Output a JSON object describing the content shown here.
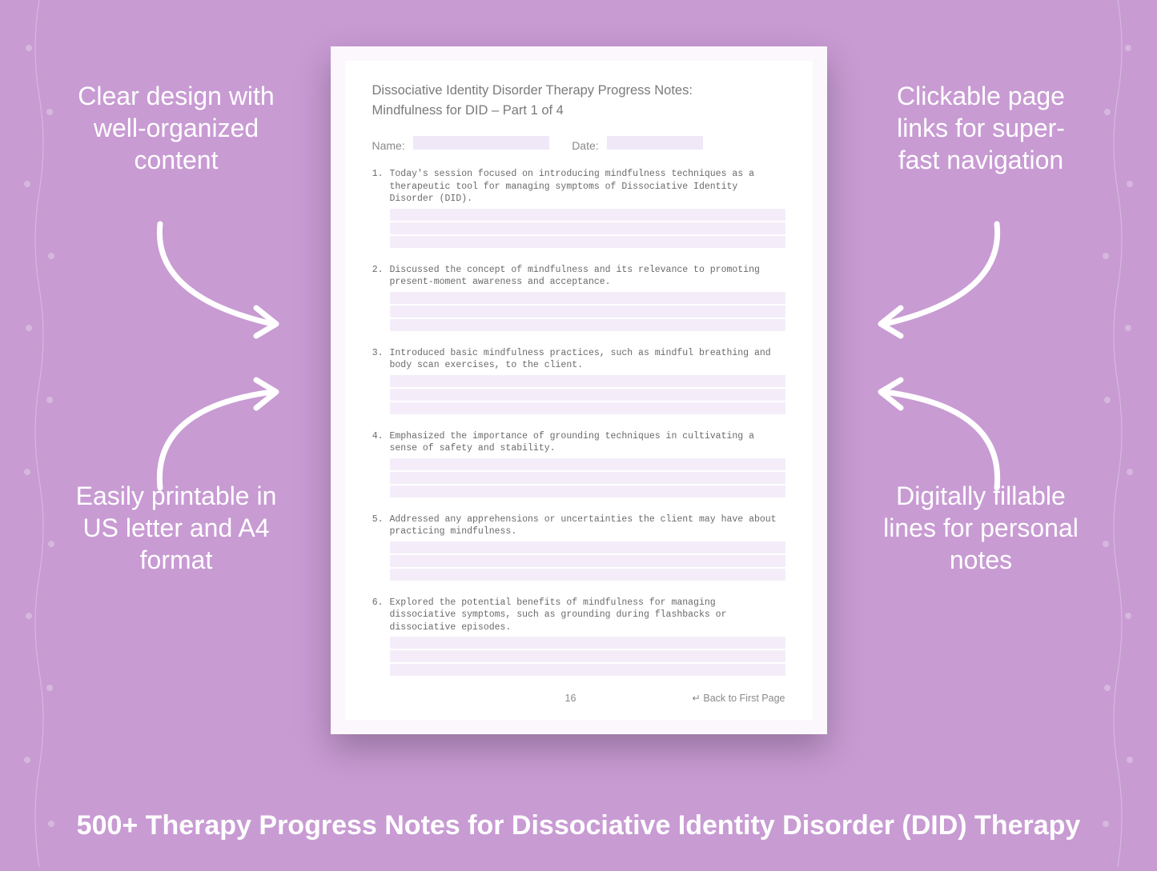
{
  "colors": {
    "background": "#c89bd3",
    "page_bg": "#fbf7fd",
    "page_inner_bg": "#ffffff",
    "field_fill": "#f0e7f7",
    "line_fill": "#f4edf9",
    "callout_text": "#ffffff",
    "title_text": "#7a7a7a",
    "body_text": "#6a6a6a",
    "arrow_stroke": "#ffffff"
  },
  "callouts": {
    "tl": "Clear design with well-organized content",
    "tr": "Clickable page links for super-fast navigation",
    "bl": "Easily printable in US letter and A4 format",
    "br": "Digitally fillable lines for personal notes"
  },
  "headline": "500+ Therapy Progress Notes for Dissociative Identity Disorder (DID) Therapy",
  "page": {
    "title": "Dissociative Identity Disorder Therapy Progress Notes:",
    "subtitle": "Mindfulness for DID – Part 1 of 4",
    "meta": {
      "name_label": "Name:",
      "date_label": "Date:"
    },
    "items": [
      {
        "n": "1.",
        "text": "Today's session focused on introducing mindfulness techniques as a therapeutic tool for managing symptoms of Dissociative Identity Disorder (DID)."
      },
      {
        "n": "2.",
        "text": "Discussed the concept of mindfulness and its relevance to promoting present-moment awareness and acceptance."
      },
      {
        "n": "3.",
        "text": "Introduced basic mindfulness practices, such as mindful breathing and body scan exercises, to the client."
      },
      {
        "n": "4.",
        "text": "Emphasized the importance of grounding techniques in cultivating a sense of safety and stability."
      },
      {
        "n": "5.",
        "text": "Addressed any apprehensions or uncertainties the client may have about practicing mindfulness."
      },
      {
        "n": "6.",
        "text": "Explored the potential benefits of mindfulness for managing dissociative symptoms, such as grounding during flashbacks or dissociative episodes."
      }
    ],
    "lines_per_item": 3,
    "page_number": "16",
    "back_link": "↵ Back to First Page"
  }
}
